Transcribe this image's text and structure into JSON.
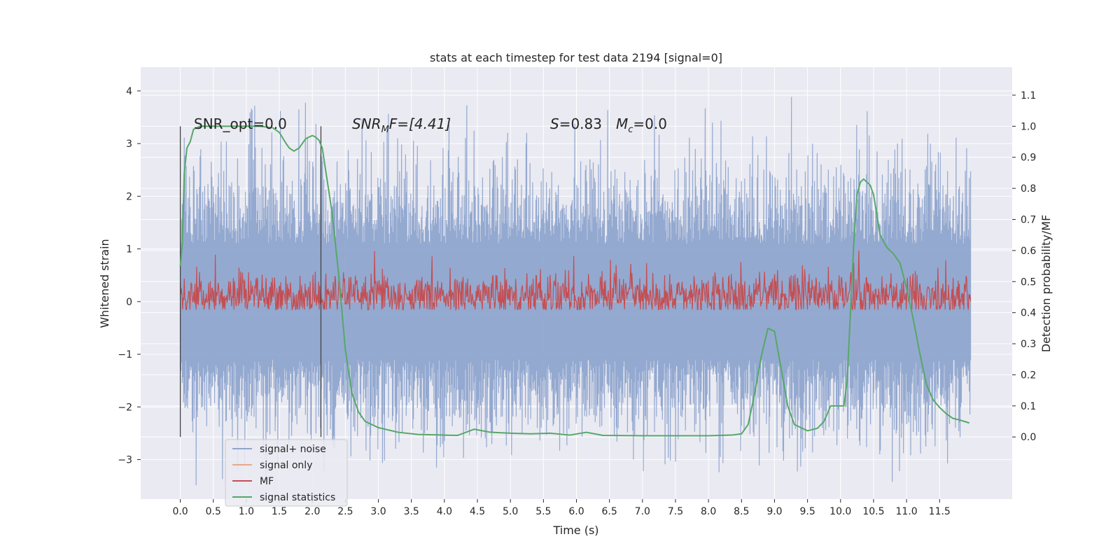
{
  "chart_data": {
    "type": "line",
    "title": "stats at each timestep for test data 2194 [signal=0]",
    "xlabel": "Time (s)",
    "ylabel": "Whitened strain",
    "y2label": "Detection probability/MF",
    "xlim": [
      -0.6,
      12.6
    ],
    "ylim": [
      -3.75,
      4.45
    ],
    "y2lim": [
      -0.2,
      1.19
    ],
    "x_ticks": [
      "0.0",
      "0.5",
      "1.0",
      "1.5",
      "2.0",
      "2.5",
      "3.0",
      "3.5",
      "4.0",
      "4.5",
      "5.0",
      "5.5",
      "6.0",
      "6.5",
      "7.0",
      "7.5",
      "8.0",
      "8.5",
      "9.0",
      "9.5",
      "10.0",
      "10.5",
      "11.0",
      "11.5"
    ],
    "y_ticks": [
      "−3",
      "−2",
      "−1",
      "0",
      "1",
      "2",
      "3",
      "4"
    ],
    "y2_ticks": [
      "0.0",
      "0.1",
      "0.2",
      "0.3",
      "0.4",
      "0.5",
      "0.6",
      "0.7",
      "0.8",
      "0.9",
      "1.0",
      "1.1"
    ],
    "grid": true,
    "legend_position": "bottom-left",
    "annotations": {
      "snr_opt": "SNR_opt=0.0",
      "snr_mf_sym": "SNR",
      "snr_mf_sub": "M",
      "snr_mf_rest": "F=[4.41]",
      "s_sym": "S",
      "s_val": "=0.83",
      "mc_sym": "M",
      "mc_sub": "c",
      "mc_val": "=0.0"
    },
    "markers_x": [
      0.0,
      2.13
    ],
    "series": [
      {
        "name": "signal+ noise",
        "color": "#8fa5cd",
        "axis": "left",
        "envelope": {
          "x_range": [
            0.0,
            11.97
          ],
          "typical_max": 2.0,
          "typical_min": -2.0,
          "peak_max": 4.1,
          "peak_min": -3.4
        }
      },
      {
        "name": "signal only",
        "color": "#e8a98a",
        "axis": "left",
        "values": "flat at 0"
      },
      {
        "name": "MF",
        "color": "#c44e52",
        "axis": "right",
        "envelope": {
          "x_range": [
            0.0,
            11.97
          ],
          "base": 0.455,
          "typical_max": 0.6,
          "peak_max": 0.6
        }
      },
      {
        "name": "signal statistics",
        "color": "#55a868",
        "axis": "right",
        "x": [
          0.0,
          0.03,
          0.06,
          0.1,
          0.15,
          0.2,
          0.3,
          0.5,
          0.8,
          1.0,
          1.2,
          1.4,
          1.5,
          1.6,
          1.65,
          1.72,
          1.8,
          1.9,
          2.0,
          2.05,
          2.1,
          2.15,
          2.2,
          2.3,
          2.4,
          2.5,
          2.6,
          2.7,
          2.8,
          3.0,
          3.3,
          3.6,
          4.0,
          4.2,
          4.45,
          4.7,
          5.0,
          5.3,
          5.6,
          5.9,
          6.15,
          6.4,
          7.0,
          7.5,
          8.0,
          8.35,
          8.5,
          8.6,
          8.7,
          8.8,
          8.9,
          9.0,
          9.1,
          9.2,
          9.3,
          9.5,
          9.65,
          9.75,
          9.85,
          9.95,
          10.05,
          10.1,
          10.15,
          10.2,
          10.25,
          10.3,
          10.35,
          10.45,
          10.5,
          10.6,
          10.7,
          10.8,
          10.9,
          11.0,
          11.1,
          11.2,
          11.3,
          11.4,
          11.5,
          11.6,
          11.7,
          11.8,
          11.95
        ],
        "values": [
          0.55,
          0.62,
          0.85,
          0.93,
          0.95,
          0.99,
          1.0,
          1.0,
          1.0,
          1.0,
          1.0,
          0.995,
          0.98,
          0.945,
          0.93,
          0.92,
          0.93,
          0.96,
          0.97,
          0.965,
          0.955,
          0.93,
          0.86,
          0.72,
          0.52,
          0.28,
          0.14,
          0.08,
          0.05,
          0.03,
          0.015,
          0.008,
          0.006,
          0.005,
          0.025,
          0.015,
          0.012,
          0.01,
          0.012,
          0.006,
          0.015,
          0.005,
          0.004,
          0.004,
          0.004,
          0.006,
          0.01,
          0.04,
          0.14,
          0.26,
          0.35,
          0.34,
          0.22,
          0.1,
          0.04,
          0.02,
          0.028,
          0.05,
          0.1,
          0.1,
          0.1,
          0.18,
          0.4,
          0.62,
          0.78,
          0.82,
          0.83,
          0.81,
          0.78,
          0.65,
          0.61,
          0.59,
          0.56,
          0.48,
          0.38,
          0.27,
          0.17,
          0.12,
          0.095,
          0.075,
          0.06,
          0.055,
          0.045
        ]
      }
    ]
  }
}
